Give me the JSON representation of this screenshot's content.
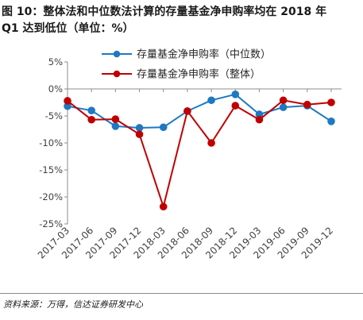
{
  "chart_data": {
    "type": "line",
    "title_lines": [
      "图 10：整体法和中位数法计算的存量基金净申购率均在 2018 年",
      "Q1 达到低位（单位：%）"
    ],
    "categories": [
      "2017-03",
      "2017-06",
      "2017-09",
      "2017-12",
      "2018-03",
      "2018-06",
      "2018-09",
      "2018-12",
      "2019-03",
      "2019-06",
      "2019-09",
      "2019-12"
    ],
    "series": [
      {
        "name": "存量基金净申购率（中位数）",
        "color": "#1f78c1",
        "marker": "circle",
        "values": [
          -3.2,
          -4.0,
          -6.9,
          -7.2,
          -7.1,
          -4.1,
          -2.1,
          -1.0,
          -4.7,
          -3.4,
          -3.1,
          -6.0
        ]
      },
      {
        "name": "存量基金净申购率（整体）",
        "color": "#c00000",
        "marker": "circle",
        "values": [
          -2.2,
          -5.7,
          -5.6,
          -8.4,
          -21.8,
          -4.1,
          -10.0,
          -3.1,
          -5.7,
          -2.1,
          -2.9,
          -2.5
        ]
      }
    ],
    "yticks": [
      {
        "value": 5,
        "label": "5%"
      },
      {
        "value": 0,
        "label": "0%"
      },
      {
        "value": -5,
        "label": "-5%"
      },
      {
        "value": -10,
        "label": "-10%"
      },
      {
        "value": -15,
        "label": "-15%"
      },
      {
        "value": -20,
        "label": "-20%"
      },
      {
        "value": -25,
        "label": "-25%"
      }
    ],
    "ylim": [
      -25,
      5
    ],
    "xlabel": "",
    "ylabel": "",
    "grid": false,
    "legend": "top-center"
  },
  "colors": {
    "axis": "#8c8c8c",
    "tick_label": "#404040",
    "legend_label": "#262626"
  },
  "footer": {
    "source": "资料来源：万得，信达证券研发中心"
  }
}
